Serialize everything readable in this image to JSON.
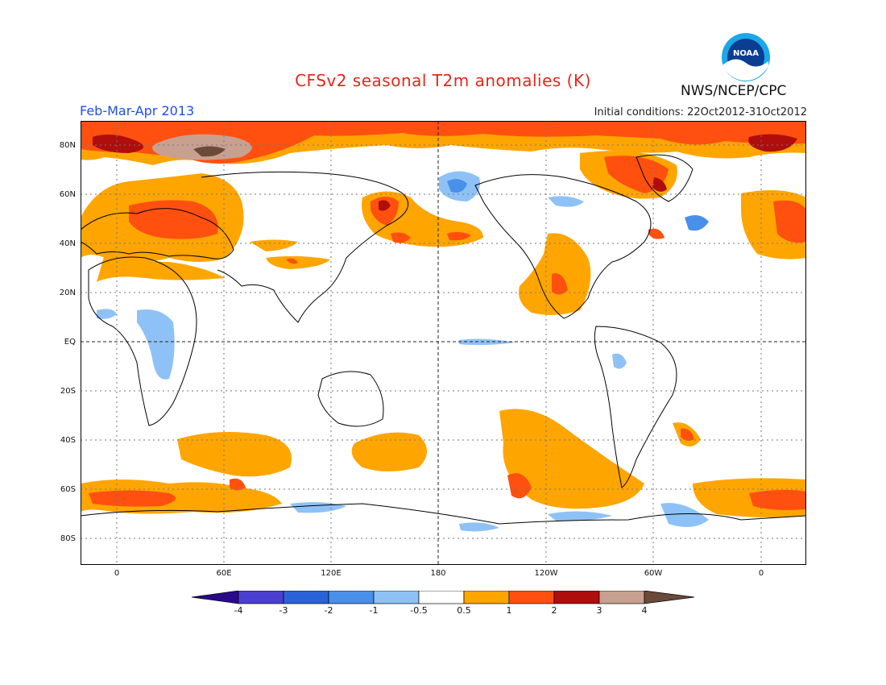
{
  "header": {
    "title": "CFSv2 seasonal T2m anomalies (K)",
    "agency": "NWS/NCEP/CPC",
    "period": "Feb-Mar-Apr 2013",
    "initial_conditions": "Initial conditions: 22Oct2012-31Oct2012"
  },
  "logo": {
    "icon": "noaa-logo-icon",
    "text": "NOAA"
  },
  "axes": {
    "lat_labels": [
      "80N",
      "60N",
      "40N",
      "20N",
      "EQ",
      "20S",
      "40S",
      "60S",
      "80S"
    ],
    "lon_labels": [
      "0",
      "60E",
      "120E",
      "180",
      "120W",
      "60W",
      "0"
    ]
  },
  "colorbar": {
    "labels": [
      "-4",
      "-3",
      "-2",
      "-1",
      "-0.5",
      "0.5",
      "1",
      "2",
      "3",
      "4"
    ],
    "colors": [
      "#2a0a8a",
      "#4b3fd0",
      "#2a63d6",
      "#4890ea",
      "#8ec2f7",
      "#ffffff",
      "#ffa500",
      "#ff5010",
      "#b00d0d",
      "#c8a090",
      "#6b4a3a"
    ]
  }
}
